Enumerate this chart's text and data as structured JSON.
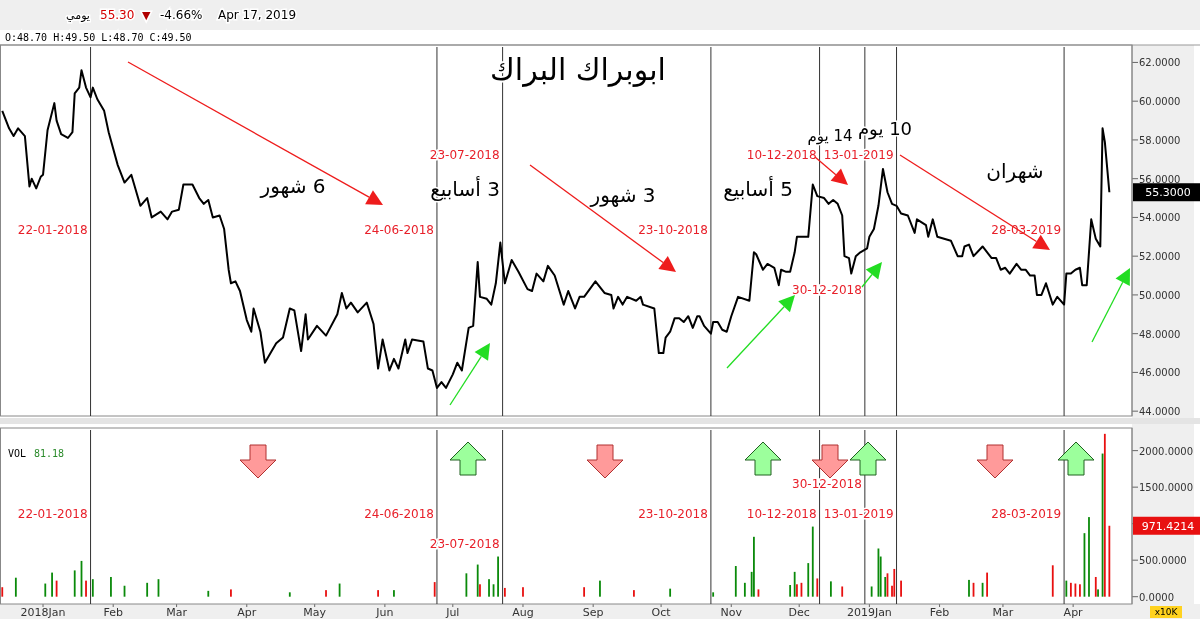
{
  "chart_data": [
    {
      "type": "line",
      "title": "ابوبراك البراك",
      "annotations": [
        "يومي",
        "55.30",
        "▼",
        "-4.66%",
        "Apr 17, 2019",
        "O:48.70 H:49.50 L:48.70 C:49.50",
        "6 شهور",
        "3 أسابيع",
        "3 شهور",
        "5 أسابيع",
        "14 يوم",
        "10 يوم",
        "شهران",
        "55.3000"
      ],
      "xlim": [
        "2017-12-13",
        "2019-04-27"
      ],
      "ylim": [
        43.75,
        62.9
      ],
      "yticks": [
        {
          "value": 44,
          "label": "44.0000"
        },
        {
          "value": 46,
          "label": "46.0000"
        },
        {
          "value": 48,
          "label": "48.0000"
        },
        {
          "value": 50,
          "label": "50.0000"
        },
        {
          "value": 52,
          "label": "52.0000"
        },
        {
          "value": 54,
          "label": "54.0000"
        },
        {
          "value": 56,
          "label": "56.0000"
        },
        {
          "value": 58,
          "label": "58.0000"
        },
        {
          "value": 60,
          "label": "60.0000"
        },
        {
          "value": 62,
          "label": "62.0000"
        }
      ],
      "tick_labels": "y",
      "ref_lines": [
        {
          "axis": "x",
          "value": "2018-01-22",
          "label": "22-01-2018"
        },
        {
          "axis": "x",
          "value": "2018-06-24",
          "label": "24-06-2018"
        },
        {
          "axis": "x",
          "value": "2018-07-23",
          "label": "23-07-2018"
        },
        {
          "axis": "x",
          "value": "2018-10-23",
          "label": "23-10-2018"
        },
        {
          "axis": "x",
          "value": "2018-12-10",
          "label": "10-12-2018"
        },
        {
          "axis": "x",
          "value": "2018-12-30",
          "label": "30-12-2018"
        },
        {
          "axis": "x",
          "value": "2019-01-13",
          "label": "13-01-2019"
        },
        {
          "axis": "x",
          "value": "2019-03-28",
          "label": "28-03-2019"
        }
      ],
      "series": [
        {
          "color": "#000000",
          "x": [
            "2017-12-14",
            "2017-12-17",
            "2017-12-19",
            "2017-12-21",
            "2017-12-24",
            "2017-12-26",
            "2017-12-27",
            "2017-12-29",
            "2017-12-31",
            "2018-01-01",
            "2018-01-03",
            "2018-01-06",
            "2018-01-07",
            "2018-01-09",
            "2018-01-12",
            "2018-01-14",
            "2018-01-15",
            "2018-01-17",
            "2018-01-18",
            "2018-01-20",
            "2018-01-22",
            "2018-01-23",
            "2018-01-25",
            "2018-01-28",
            "2018-01-30",
            "2018-02-03",
            "2018-02-06",
            "2018-02-09",
            "2018-02-13",
            "2018-02-16",
            "2018-02-18",
            "2018-02-22",
            "2018-02-25",
            "2018-02-27",
            "2018-03-02",
            "2018-03-04",
            "2018-03-08",
            "2018-03-11",
            "2018-03-13",
            "2018-03-15",
            "2018-03-17",
            "2018-03-20",
            "2018-03-22",
            "2018-03-24",
            "2018-03-25",
            "2018-03-27",
            "2018-03-29",
            "2018-04-01",
            "2018-04-03",
            "2018-04-04",
            "2018-04-07",
            "2018-04-09",
            "2018-04-12",
            "2018-04-14",
            "2018-04-17",
            "2018-04-20",
            "2018-04-22",
            "2018-04-25",
            "2018-04-27",
            "2018-04-28",
            "2018-05-02",
            "2018-05-06",
            "2018-05-11",
            "2018-05-13",
            "2018-05-15",
            "2018-05-17",
            "2018-05-20",
            "2018-05-24",
            "2018-05-27",
            "2018-05-29",
            "2018-05-31",
            "2018-06-03",
            "2018-06-05",
            "2018-06-07",
            "2018-06-10",
            "2018-06-11",
            "2018-06-13",
            "2018-06-18",
            "2018-06-20",
            "2018-06-22",
            "2018-06-24",
            "2018-06-26",
            "2018-06-28",
            "2018-07-01",
            "2018-07-03",
            "2018-07-05",
            "2018-07-08",
            "2018-07-10",
            "2018-07-12",
            "2018-07-13",
            "2018-07-16",
            "2018-07-18",
            "2018-07-20",
            "2018-07-22",
            "2018-07-24",
            "2018-07-27",
            "2018-07-30",
            "2018-08-03",
            "2018-08-05",
            "2018-08-07",
            "2018-08-10",
            "2018-08-12",
            "2018-08-15",
            "2018-08-19",
            "2018-08-21",
            "2018-08-24",
            "2018-08-26",
            "2018-08-28",
            "2018-09-02",
            "2018-09-06",
            "2018-09-09",
            "2018-09-10",
            "2018-09-12",
            "2018-09-14",
            "2018-09-16",
            "2018-09-20",
            "2018-09-22",
            "2018-09-23",
            "2018-09-28",
            "2018-09-30",
            "2018-10-02",
            "2018-10-03",
            "2018-10-05",
            "2018-10-07",
            "2018-10-09",
            "2018-10-11",
            "2018-10-13",
            "2018-10-15",
            "2018-10-17",
            "2018-10-18",
            "2018-10-20",
            "2018-10-23",
            "2018-10-24",
            "2018-10-26",
            "2018-10-28",
            "2018-10-30",
            "2018-11-01",
            "2018-11-04",
            "2018-11-09",
            "2018-11-11",
            "2018-11-12",
            "2018-11-15",
            "2018-11-17",
            "2018-11-20",
            "2018-11-22",
            "2018-11-23",
            "2018-11-25",
            "2018-11-27",
            "2018-11-29",
            "2018-11-30",
            "2018-12-05",
            "2018-12-07",
            "2018-12-09",
            "2018-12-12",
            "2018-12-14",
            "2018-12-16",
            "2018-12-18",
            "2018-12-20",
            "2018-12-21",
            "2018-12-23",
            "2018-12-24",
            "2018-12-26",
            "2018-12-28",
            "2018-12-31",
            "2019-01-01",
            "2019-01-03",
            "2019-01-05",
            "2019-01-07",
            "2019-01-09",
            "2019-01-11",
            "2019-01-13",
            "2019-01-15",
            "2019-01-18",
            "2019-01-21",
            "2019-01-22",
            "2019-01-26",
            "2019-01-27",
            "2019-01-29",
            "2019-01-31",
            "2019-02-06",
            "2019-02-09",
            "2019-02-11",
            "2019-02-12",
            "2019-02-14",
            "2019-02-16",
            "2019-02-20",
            "2019-02-24",
            "2019-02-26",
            "2019-02-28",
            "2019-03-02",
            "2019-03-04",
            "2019-03-07",
            "2019-03-09",
            "2019-03-11",
            "2019-03-13",
            "2019-03-15",
            "2019-03-16",
            "2019-03-18",
            "2019-03-20",
            "2019-03-23",
            "2019-03-25",
            "2019-03-28",
            "2019-03-29",
            "2019-03-31",
            "2019-04-02",
            "2019-04-04",
            "2019-04-05",
            "2019-04-07",
            "2019-04-09",
            "2019-04-11",
            "2019-04-13",
            "2019-04-14",
            "2019-04-15",
            "2019-04-17"
          ],
          "values": [
            59.5,
            58.6,
            58.2,
            58.6,
            58.2,
            55.6,
            56.0,
            55.5,
            56.1,
            56.2,
            58.5,
            59.9,
            59.0,
            58.3,
            58.1,
            58.4,
            60.4,
            60.7,
            61.6,
            60.7,
            60.2,
            60.7,
            60.1,
            59.5,
            58.4,
            56.7,
            55.8,
            56.2,
            54.6,
            55.0,
            54.0,
            54.3,
            53.9,
            54.3,
            54.4,
            55.7,
            55.7,
            55.0,
            54.7,
            54.9,
            54.0,
            54.1,
            53.4,
            51.3,
            50.6,
            50.7,
            50.2,
            48.7,
            48.1,
            49.3,
            48.1,
            46.5,
            47.1,
            47.5,
            47.8,
            49.3,
            49.2,
            47.1,
            49.0,
            47.7,
            48.4,
            47.9,
            49.0,
            50.1,
            49.3,
            49.6,
            49.1,
            49.6,
            48.5,
            46.2,
            47.7,
            46.1,
            46.7,
            46.2,
            47.7,
            47.0,
            47.7,
            47.6,
            46.2,
            46.1,
            45.2,
            45.5,
            45.2,
            45.9,
            46.5,
            46.1,
            48.3,
            48.4,
            51.7,
            49.9,
            49.8,
            49.5,
            50.6,
            52.7,
            50.6,
            51.8,
            51.2,
            50.3,
            50.2,
            51.1,
            50.7,
            51.5,
            51.0,
            49.5,
            50.2,
            49.3,
            49.9,
            49.9,
            50.7,
            50.1,
            50.0,
            49.3,
            49.9,
            49.5,
            49.9,
            49.7,
            49.9,
            49.5,
            49.3,
            47.0,
            47.0,
            47.8,
            48.1,
            48.8,
            48.8,
            48.6,
            48.9,
            48.3,
            48.9,
            48.9,
            48.4,
            48.0,
            48.6,
            48.6,
            48.2,
            48.1,
            48.9,
            49.9,
            49.7,
            52.2,
            52.1,
            51.3,
            51.6,
            51.4,
            50.5,
            51.3,
            51.2,
            51.2,
            52.2,
            53.0,
            53.0,
            55.7,
            55.1,
            55.0,
            54.7,
            54.9,
            54.7,
            54.1,
            52.0,
            51.9,
            51.1,
            52.0,
            52.2,
            52.4,
            53.0,
            53.4,
            54.6,
            56.5,
            55.3,
            54.7,
            54.6,
            54.2,
            54.1,
            53.2,
            53.9,
            53.6,
            53.0,
            53.9,
            53.0,
            52.8,
            52.0,
            52.0,
            52.5,
            52.6,
            52.0,
            52.5,
            51.9,
            51.9,
            51.3,
            51.4,
            51.1,
            51.6,
            51.3,
            51.3,
            51.0,
            51.0,
            50.0,
            50.0,
            50.6,
            49.5,
            49.9,
            49.5,
            51.1,
            51.1,
            51.3,
            51.4,
            50.5,
            50.5,
            53.9,
            52.9,
            52.5,
            58.6,
            57.9,
            55.3
          ]
        }
      ]
    },
    {
      "type": "bar",
      "annotations": [
        "VOL",
        "81.18",
        "971.4214",
        "x10K"
      ],
      "xlim": [
        "2017-12-13",
        "2019-04-27"
      ],
      "ylim": [
        -100,
        2310
      ],
      "xticks": [
        {
          "value": "2018-01-01",
          "label": "2018Jan"
        },
        {
          "value": "2018-02-01",
          "label": "Feb"
        },
        {
          "value": "2018-03-01",
          "label": "Mar"
        },
        {
          "value": "2018-04-01",
          "label": "Apr"
        },
        {
          "value": "2018-05-01",
          "label": "May"
        },
        {
          "value": "2018-06-01",
          "label": "Jun"
        },
        {
          "value": "2018-07-01",
          "label": "Jul"
        },
        {
          "value": "2018-08-01",
          "label": "Aug"
        },
        {
          "value": "2018-09-01",
          "label": "Sep"
        },
        {
          "value": "2018-10-01",
          "label": "Oct"
        },
        {
          "value": "2018-11-01",
          "label": "Nov"
        },
        {
          "value": "2018-12-01",
          "label": "Dec"
        },
        {
          "value": "2019-01-01",
          "label": "2019Jan"
        },
        {
          "value": "2019-02-01",
          "label": "Feb"
        },
        {
          "value": "2019-03-01",
          "label": "Mar"
        },
        {
          "value": "2019-04-01",
          "label": "Apr"
        }
      ],
      "yticks": [
        {
          "value": 0,
          "label": "0.0000"
        },
        {
          "value": 500,
          "label": "500.0000"
        },
        {
          "value": 1000,
          "label": null
        },
        {
          "value": 1500,
          "label": "1500.0000"
        },
        {
          "value": 2000,
          "label": "2000.0000"
        }
      ],
      "ref_lines": [
        {
          "axis": "x",
          "value": "2018-01-22",
          "label": "22-01-2018"
        },
        {
          "axis": "x",
          "value": "2018-06-24",
          "label": "24-06-2018"
        },
        {
          "axis": "x",
          "value": "2018-07-23",
          "label": "23-07-2018"
        },
        {
          "axis": "x",
          "value": "2018-10-23",
          "label": "23-10-2018"
        },
        {
          "axis": "x",
          "value": "2018-12-10",
          "label": "10-12-2018"
        },
        {
          "axis": "x",
          "value": "2018-12-30",
          "label": "30-12-2018"
        },
        {
          "axis": "x",
          "value": "2019-01-13",
          "label": "13-01-2019"
        },
        {
          "axis": "x",
          "value": "2019-03-28",
          "label": "28-03-2019"
        }
      ],
      "series": [
        {
          "x": [
            "2017-12-14",
            "2017-12-20",
            "2018-01-02",
            "2018-01-05",
            "2018-01-07",
            "2018-01-15",
            "2018-01-18",
            "2018-01-20",
            "2018-01-23",
            "2018-01-31",
            "2018-02-06",
            "2018-02-16",
            "2018-02-21",
            "2018-03-15",
            "2018-03-25",
            "2018-04-20",
            "2018-05-06",
            "2018-05-12",
            "2018-05-29",
            "2018-06-05",
            "2018-06-23",
            "2018-07-07",
            "2018-07-12",
            "2018-07-13",
            "2018-07-17",
            "2018-07-19",
            "2018-07-21",
            "2018-07-24",
            "2018-08-01",
            "2018-08-28",
            "2018-09-04",
            "2018-09-19",
            "2018-10-05",
            "2018-10-24",
            "2018-11-03",
            "2018-11-07",
            "2018-11-10",
            "2018-11-11",
            "2018-11-13",
            "2018-11-27",
            "2018-11-29",
            "2018-11-30",
            "2018-12-02",
            "2018-12-05",
            "2018-12-07",
            "2018-12-09",
            "2018-12-15",
            "2018-12-20",
            "2019-01-02",
            "2019-01-05",
            "2019-01-06",
            "2019-01-08",
            "2019-01-09",
            "2019-01-11",
            "2019-01-12",
            "2019-01-15",
            "2019-02-14",
            "2019-02-16",
            "2019-02-20",
            "2019-02-22",
            "2019-03-23",
            "2019-03-29",
            "2019-03-31",
            "2019-04-02",
            "2019-04-04",
            "2019-04-06",
            "2019-04-08",
            "2019-04-11",
            "2019-04-12",
            "2019-04-14",
            "2019-04-15",
            "2019-04-17"
          ],
          "values": [
            130,
            260,
            180,
            330,
            220,
            360,
            490,
            220,
            240,
            270,
            150,
            190,
            240,
            80,
            100,
            60,
            90,
            180,
            90,
            90,
            200,
            320,
            440,
            170,
            240,
            170,
            550,
            120,
            130,
            130,
            220,
            90,
            110,
            60,
            420,
            190,
            340,
            820,
            100,
            160,
            340,
            170,
            190,
            460,
            960,
            250,
            210,
            140,
            140,
            660,
            550,
            270,
            320,
            150,
            380,
            220,
            230,
            190,
            190,
            330,
            430,
            220,
            190,
            180,
            170,
            870,
            1090,
            270,
            100,
            1960,
            2230,
            971.4214
          ],
          "colors": [
            "#e81010",
            "#0a8a0a",
            "#0a8a0a",
            "#0a8a0a",
            "#e81010",
            "#0a8a0a",
            "#0a8a0a",
            "#e81010",
            "#0a8a0a",
            "#0a8a0a",
            "#0a8a0a",
            "#0a8a0a",
            "#0a8a0a",
            "#0a8a0a",
            "#e81010",
            "#0a8a0a",
            "#e81010",
            "#0a8a0a",
            "#e81010",
            "#0a8a0a",
            "#e81010",
            "#0a8a0a",
            "#0a8a0a",
            "#e81010",
            "#0a8a0a",
            "#0a8a0a",
            "#0a8a0a",
            "#e81010",
            "#e81010",
            "#e81010",
            "#0a8a0a",
            "#e81010",
            "#0a8a0a",
            "#0a8a0a",
            "#0a8a0a",
            "#0a8a0a",
            "#0a8a0a",
            "#0a8a0a",
            "#e81010",
            "#0a8a0a",
            "#0a8a0a",
            "#e81010",
            "#e81010",
            "#0a8a0a",
            "#0a8a0a",
            "#e81010",
            "#0a8a0a",
            "#e81010",
            "#0a8a0a",
            "#0a8a0a",
            "#0a8a0a",
            "#0a8a0a",
            "#e81010",
            "#e81010",
            "#e81010",
            "#e81010",
            "#0a8a0a",
            "#e81010",
            "#0a8a0a",
            "#e81010",
            "#e81010",
            "#0a8a0a",
            "#e81010",
            "#e81010",
            "#e81010",
            "#0a8a0a",
            "#0a8a0a",
            "#e81010",
            "#0a8a0a",
            "#0a8a0a",
            "#e81010",
            "#e81010"
          ]
        }
      ]
    }
  ]
}
